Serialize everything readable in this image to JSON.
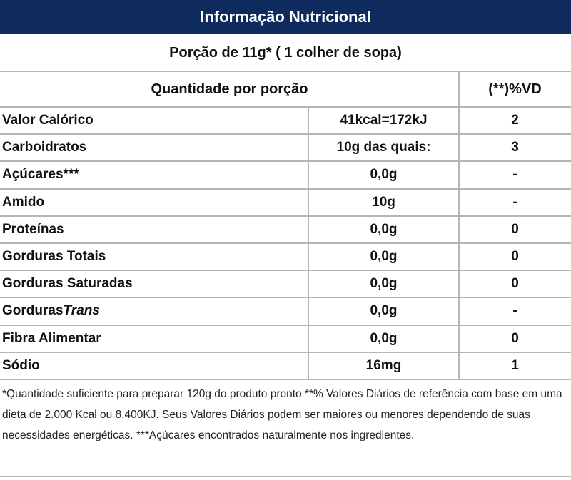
{
  "title": "Informação Nutricional",
  "serving": "Porção de 11g* ( 1 colher de sopa)",
  "header": {
    "amount": "Quantidade por porção",
    "vd": "(**)%VD"
  },
  "rows": [
    {
      "name": "Valor Calórico",
      "amount": "41kcal=172kJ",
      "vd": "2"
    },
    {
      "name": "Carboidratos",
      "amount": "10g das quais:",
      "vd": "3"
    },
    {
      "name": "Açúcares***",
      "amount": "0,0g",
      "vd": "-"
    },
    {
      "name": "Amido",
      "amount": "10g",
      "vd": "-"
    },
    {
      "name": "Proteínas",
      "amount": "0,0g",
      "vd": "0"
    },
    {
      "name": "Gorduras Totais",
      "amount": "0,0g",
      "vd": "0"
    },
    {
      "name": "Gorduras Saturadas",
      "amount": "0,0g",
      "vd": "0"
    },
    {
      "name": "Gorduras",
      "name_italic": "Trans",
      "amount": "0,0g",
      "vd": "-"
    },
    {
      "name": "Fibra Alimentar",
      "amount": "0,0g",
      "vd": "0"
    },
    {
      "name": "Sódio",
      "amount": "16mg",
      "vd": "1"
    }
  ],
  "footnote": "*Quantidade suficiente para preparar 120g do produto pronto **% Valores Diários de referência com base em uma dieta de 2.000 Kcal ou 8.400KJ. Seus Valores Diários podem ser maiores ou menores dependendo de suas necessidades energéticas. ***Açúcares encontrados naturalmente nos ingredientes."
}
